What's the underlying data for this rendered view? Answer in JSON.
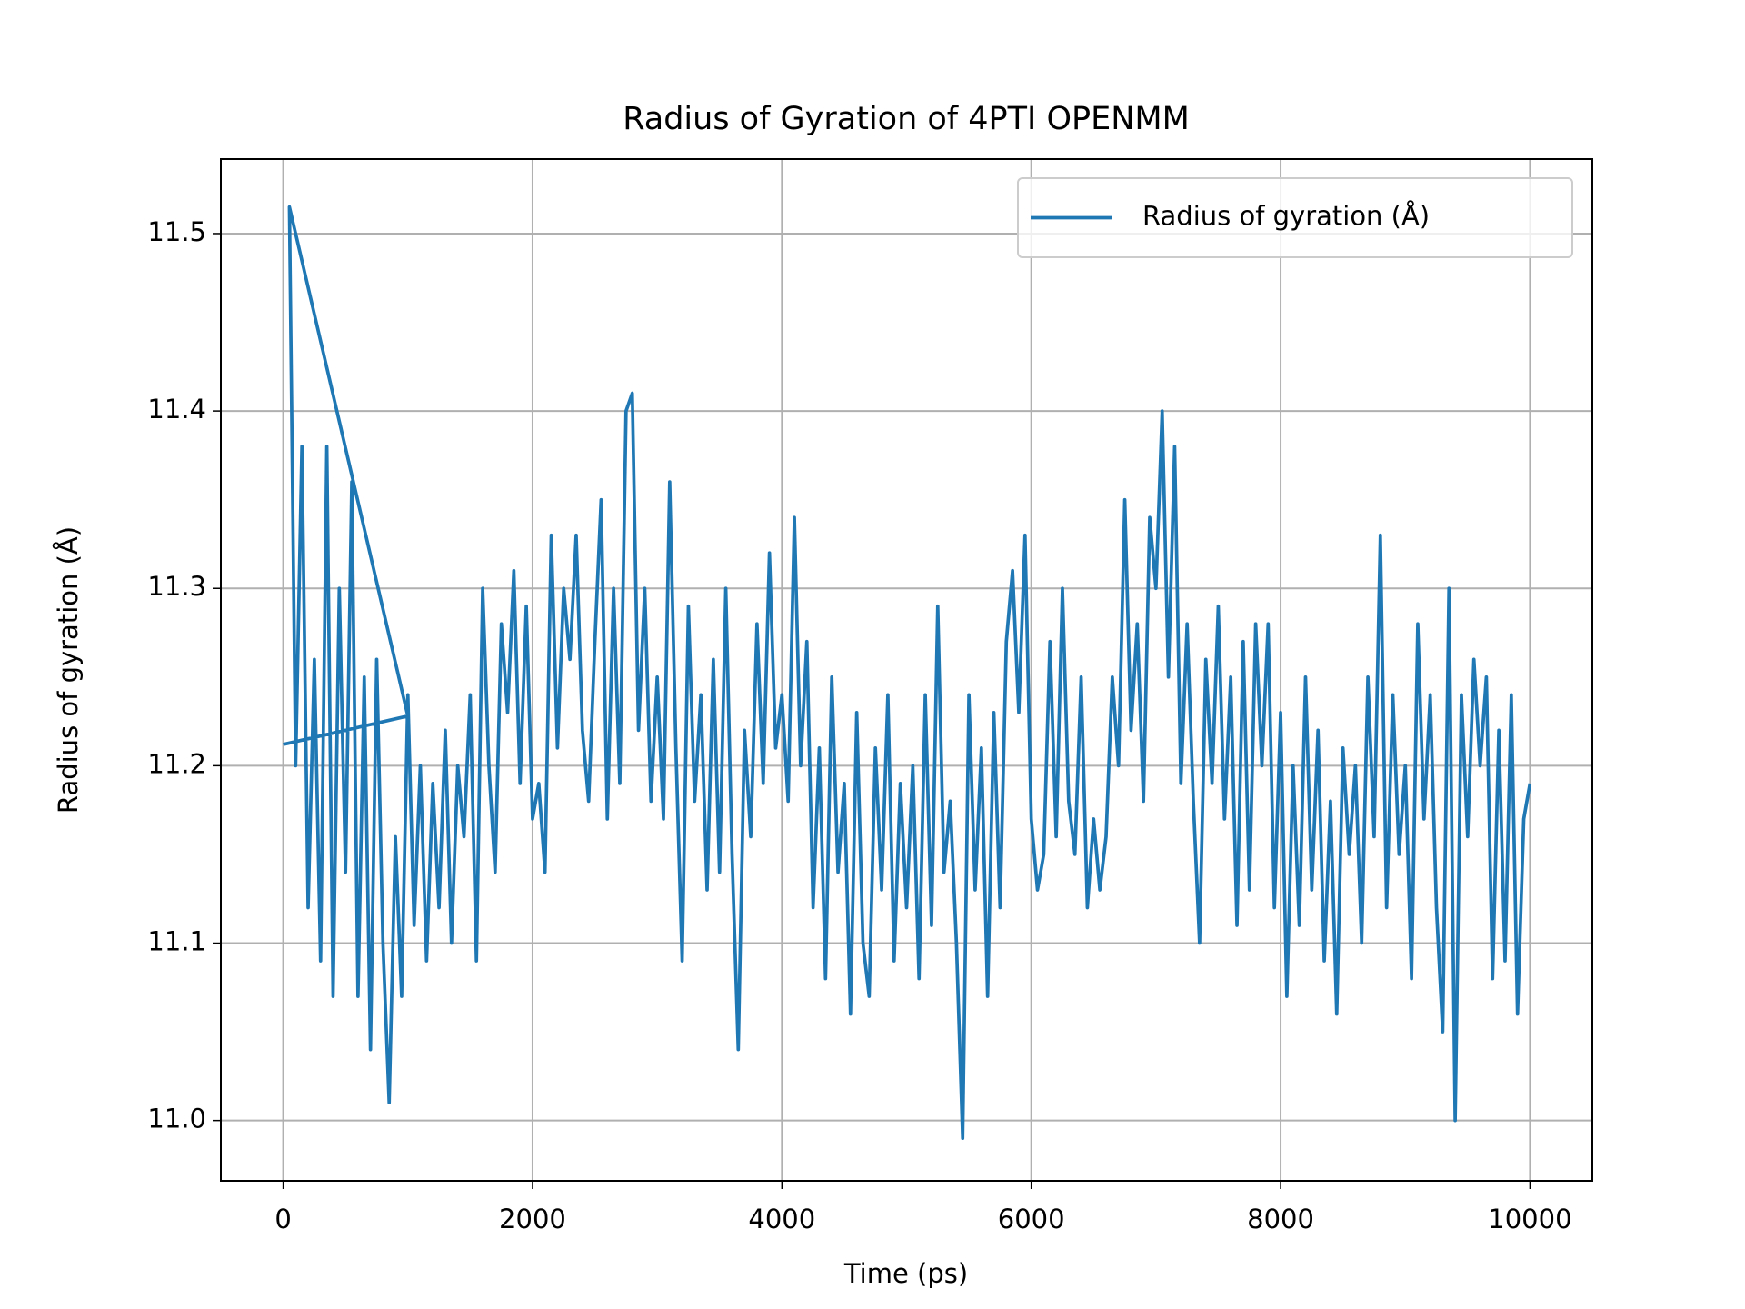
{
  "chart_data": {
    "type": "line",
    "title": "Radius of Gyration of 4PTI OPENMM",
    "x_label": "Time (ps)",
    "y_label": "Radius of gyration (Å)",
    "xlim": [
      -500,
      10500
    ],
    "ylim": [
      10.966,
      11.542
    ],
    "xticks": [
      0,
      2000,
      4000,
      6000,
      8000,
      10000
    ],
    "yticks": [
      {
        "value": 11,
        "label": "11.0"
      },
      11.1,
      11.2,
      11.3,
      11.4,
      11.5
    ],
    "grid": true,
    "legend": "upper right",
    "x": [
      0,
      1000,
      50,
      100,
      150,
      200,
      250,
      300,
      350,
      400,
      450,
      500,
      550,
      600,
      650,
      700,
      750,
      800,
      850,
      900,
      950,
      1000,
      1050,
      1100,
      1150,
      1200,
      1250,
      1300,
      1350,
      1400,
      1450,
      1500,
      1550,
      1600,
      1650,
      1700,
      1750,
      1800,
      1850,
      1900,
      1950,
      2000,
      2050,
      2100,
      2150,
      2200,
      2250,
      2300,
      2350,
      2400,
      2450,
      2500,
      2550,
      2600,
      2650,
      2700,
      2750,
      2800,
      2850,
      2900,
      2950,
      3000,
      3050,
      3100,
      3150,
      3200,
      3250,
      3300,
      3350,
      3400,
      3450,
      3500,
      3550,
      3600,
      3650,
      3700,
      3750,
      3800,
      3850,
      3900,
      3950,
      4000,
      4050,
      4100,
      4150,
      4200,
      4250,
      4300,
      4350,
      4400,
      4450,
      4500,
      4550,
      4600,
      4650,
      4700,
      4750,
      4800,
      4850,
      4900,
      4950,
      5000,
      5050,
      5100,
      5150,
      5200,
      5250,
      5300,
      5350,
      5400,
      5450,
      5500,
      5550,
      5600,
      5650,
      5700,
      5750,
      5800,
      5850,
      5900,
      5950,
      6000,
      6050,
      6100,
      6150,
      6200,
      6250,
      6300,
      6350,
      6400,
      6450,
      6500,
      6550,
      6600,
      6650,
      6700,
      6750,
      6800,
      6850,
      6900,
      6950,
      7000,
      7050,
      7100,
      7150,
      7200,
      7250,
      7300,
      7350,
      7400,
      7450,
      7500,
      7550,
      7600,
      7650,
      7700,
      7750,
      7800,
      7850,
      7900,
      7950,
      8000,
      8050,
      8100,
      8150,
      8200,
      8250,
      8300,
      8350,
      8400,
      8450,
      8500,
      8550,
      8600,
      8650,
      8700,
      8750,
      8800,
      8850,
      8900,
      8950,
      9000,
      9050,
      9100,
      9150,
      9200,
      9250,
      9300,
      9350,
      9400,
      9450,
      9500,
      9550,
      9600,
      9650,
      9700,
      9750,
      9800,
      9850,
      9900,
      9950,
      10000
    ],
    "series": [
      {
        "name": "Radius of gyration (Å)",
        "color": "#1f77b4",
        "values": [
          11.212,
          11.228,
          11.515,
          11.2,
          11.38,
          11.12,
          11.26,
          11.09,
          11.38,
          11.07,
          11.3,
          11.14,
          11.36,
          11.07,
          11.25,
          11.04,
          11.26,
          11.1,
          11.01,
          11.16,
          11.07,
          11.24,
          11.11,
          11.2,
          11.09,
          11.19,
          11.12,
          11.22,
          11.1,
          11.2,
          11.16,
          11.24,
          11.09,
          11.3,
          11.2,
          11.14,
          11.28,
          11.23,
          11.31,
          11.19,
          11.29,
          11.17,
          11.19,
          11.14,
          11.33,
          11.21,
          11.3,
          11.26,
          11.33,
          11.22,
          11.18,
          11.27,
          11.35,
          11.17,
          11.3,
          11.19,
          11.4,
          11.41,
          11.22,
          11.3,
          11.18,
          11.25,
          11.17,
          11.36,
          11.21,
          11.09,
          11.29,
          11.18,
          11.24,
          11.13,
          11.26,
          11.14,
          11.3,
          11.15,
          11.04,
          11.22,
          11.16,
          11.28,
          11.19,
          11.32,
          11.21,
          11.24,
          11.18,
          11.34,
          11.2,
          11.27,
          11.12,
          11.21,
          11.08,
          11.25,
          11.14,
          11.19,
          11.06,
          11.23,
          11.1,
          11.07,
          11.21,
          11.13,
          11.24,
          11.09,
          11.19,
          11.12,
          11.2,
          11.08,
          11.24,
          11.11,
          11.29,
          11.14,
          11.18,
          11.1,
          10.99,
          11.24,
          11.13,
          11.21,
          11.07,
          11.23,
          11.12,
          11.27,
          11.31,
          11.23,
          11.33,
          11.17,
          11.13,
          11.15,
          11.27,
          11.16,
          11.3,
          11.18,
          11.15,
          11.25,
          11.12,
          11.17,
          11.13,
          11.16,
          11.25,
          11.2,
          11.35,
          11.22,
          11.28,
          11.18,
          11.34,
          11.3,
          11.4,
          11.25,
          11.38,
          11.19,
          11.28,
          11.18,
          11.1,
          11.26,
          11.19,
          11.29,
          11.17,
          11.25,
          11.11,
          11.27,
          11.13,
          11.28,
          11.2,
          11.28,
          11.12,
          11.23,
          11.07,
          11.2,
          11.11,
          11.25,
          11.13,
          11.22,
          11.09,
          11.18,
          11.06,
          11.21,
          11.15,
          11.2,
          11.1,
          11.25,
          11.16,
          11.33,
          11.12,
          11.24,
          11.15,
          11.2,
          11.08,
          11.28,
          11.17,
          11.24,
          11.12,
          11.05,
          11.3,
          11.0,
          11.24,
          11.16,
          11.26,
          11.2,
          11.25,
          11.08,
          11.22,
          11.09,
          11.24,
          11.06,
          11.17,
          11.19
        ]
      }
    ]
  }
}
